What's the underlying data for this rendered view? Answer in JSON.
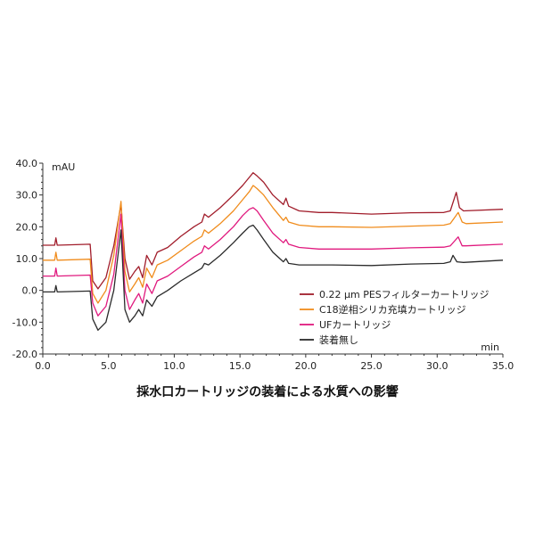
{
  "chart_data": {
    "type": "line",
    "caption": "採水口カートリッジの装着による水質への影響",
    "ylabel": "mAU",
    "xlabel": "min",
    "xlim": [
      0.0,
      35.0
    ],
    "ylim": [
      -20.0,
      40.0
    ],
    "x_ticks": [
      "0.0",
      "5.0",
      "10.0",
      "15.0",
      "20.0",
      "25.0",
      "30.0",
      "35.0"
    ],
    "y_ticks": [
      "40.0",
      "30.0",
      "20.0",
      "10.0",
      "0.0",
      "-10.0",
      "-20.0"
    ],
    "grid": false,
    "legend_position": "center-right",
    "series": [
      {
        "name": "0.22 μm PESフィルターカートリッジ",
        "color": "#a11d2b",
        "points": [
          [
            0,
            14.2
          ],
          [
            0.9,
            14.2
          ],
          [
            1.0,
            16.5
          ],
          [
            1.1,
            14.2
          ],
          [
            3.6,
            14.5
          ],
          [
            3.8,
            3
          ],
          [
            4.2,
            0.5
          ],
          [
            4.8,
            4
          ],
          [
            5.4,
            14
          ],
          [
            5.95,
            27
          ],
          [
            6.25,
            10
          ],
          [
            6.6,
            3.5
          ],
          [
            7.0,
            6
          ],
          [
            7.3,
            7.5
          ],
          [
            7.6,
            4
          ],
          [
            7.9,
            11
          ],
          [
            8.3,
            8
          ],
          [
            8.7,
            12
          ],
          [
            9.5,
            13.5
          ],
          [
            10.5,
            17
          ],
          [
            11.5,
            20
          ],
          [
            12.1,
            21.5
          ],
          [
            12.3,
            24
          ],
          [
            12.6,
            23
          ],
          [
            13.5,
            26
          ],
          [
            14.5,
            30
          ],
          [
            15.2,
            33
          ],
          [
            15.7,
            35.5
          ],
          [
            16.0,
            37
          ],
          [
            16.3,
            36
          ],
          [
            16.8,
            34
          ],
          [
            17.5,
            30
          ],
          [
            18.3,
            27
          ],
          [
            18.5,
            29
          ],
          [
            18.7,
            26.5
          ],
          [
            19.5,
            25
          ],
          [
            21.0,
            24.5
          ],
          [
            22.0,
            24.5
          ],
          [
            25.0,
            24
          ],
          [
            28.0,
            24.4
          ],
          [
            30.5,
            24.5
          ],
          [
            31.0,
            25
          ],
          [
            31.45,
            30.8
          ],
          [
            31.7,
            26
          ],
          [
            32.0,
            25
          ],
          [
            35.0,
            25.5
          ]
        ]
      },
      {
        "name": "C18逆相シリカ充填カートリッジ",
        "color": "#f08c1c",
        "points": [
          [
            0,
            9.5
          ],
          [
            0.9,
            9.5
          ],
          [
            1.0,
            12
          ],
          [
            1.1,
            9.5
          ],
          [
            3.6,
            9.8
          ],
          [
            3.8,
            -1
          ],
          [
            4.2,
            -4
          ],
          [
            4.8,
            0
          ],
          [
            5.4,
            11
          ],
          [
            5.95,
            28
          ],
          [
            6.25,
            6
          ],
          [
            6.6,
            -0.5
          ],
          [
            7.0,
            2
          ],
          [
            7.3,
            4
          ],
          [
            7.6,
            1
          ],
          [
            7.9,
            7
          ],
          [
            8.3,
            4
          ],
          [
            8.7,
            8
          ],
          [
            9.5,
            9.5
          ],
          [
            10.5,
            12.5
          ],
          [
            11.5,
            15.5
          ],
          [
            12.1,
            17
          ],
          [
            12.3,
            19
          ],
          [
            12.6,
            18
          ],
          [
            13.5,
            21
          ],
          [
            14.5,
            25
          ],
          [
            15.2,
            28.5
          ],
          [
            15.7,
            31
          ],
          [
            16.0,
            33
          ],
          [
            16.3,
            32
          ],
          [
            16.8,
            30
          ],
          [
            17.5,
            26
          ],
          [
            18.3,
            22
          ],
          [
            18.5,
            23
          ],
          [
            18.7,
            21.5
          ],
          [
            19.5,
            20.5
          ],
          [
            21.0,
            20
          ],
          [
            22.0,
            20
          ],
          [
            25.0,
            19.8
          ],
          [
            28.0,
            20.2
          ],
          [
            30.5,
            20.5
          ],
          [
            31.0,
            21
          ],
          [
            31.6,
            24.5
          ],
          [
            31.9,
            21.5
          ],
          [
            32.2,
            21
          ],
          [
            35.0,
            21.5
          ]
        ]
      },
      {
        "name": "UFカートリッジ",
        "color": "#e0197e",
        "points": [
          [
            0,
            4.5
          ],
          [
            0.9,
            4.5
          ],
          [
            1.0,
            7
          ],
          [
            1.1,
            4.5
          ],
          [
            3.6,
            4.8
          ],
          [
            3.8,
            -4
          ],
          [
            4.2,
            -8
          ],
          [
            4.8,
            -5
          ],
          [
            5.4,
            5
          ],
          [
            5.95,
            24
          ],
          [
            6.25,
            0
          ],
          [
            6.6,
            -6
          ],
          [
            7.0,
            -3
          ],
          [
            7.3,
            -1
          ],
          [
            7.6,
            -4
          ],
          [
            7.9,
            2
          ],
          [
            8.3,
            -1
          ],
          [
            8.7,
            3
          ],
          [
            9.5,
            4.5
          ],
          [
            10.5,
            7.5
          ],
          [
            11.5,
            10.5
          ],
          [
            12.1,
            12
          ],
          [
            12.3,
            14
          ],
          [
            12.6,
            13
          ],
          [
            13.5,
            16
          ],
          [
            14.5,
            20
          ],
          [
            15.2,
            23.5
          ],
          [
            15.7,
            25.5
          ],
          [
            16.0,
            26
          ],
          [
            16.3,
            25
          ],
          [
            16.8,
            22
          ],
          [
            17.5,
            18
          ],
          [
            18.3,
            15
          ],
          [
            18.5,
            16
          ],
          [
            18.7,
            14.5
          ],
          [
            19.5,
            13.5
          ],
          [
            21.0,
            13
          ],
          [
            22.0,
            13
          ],
          [
            25.0,
            13
          ],
          [
            28.0,
            13.4
          ],
          [
            30.5,
            13.6
          ],
          [
            31.0,
            14
          ],
          [
            31.6,
            16.8
          ],
          [
            31.9,
            14
          ],
          [
            32.2,
            14
          ],
          [
            35.0,
            14.5
          ]
        ]
      },
      {
        "name": "装着無し",
        "color": "#2b2b2b",
        "points": [
          [
            0,
            -0.5
          ],
          [
            0.9,
            -0.5
          ],
          [
            1.0,
            1.5
          ],
          [
            1.1,
            -0.5
          ],
          [
            3.6,
            -0.2
          ],
          [
            3.8,
            -9
          ],
          [
            4.2,
            -12.5
          ],
          [
            4.8,
            -10
          ],
          [
            5.4,
            0
          ],
          [
            5.95,
            19
          ],
          [
            6.25,
            -6
          ],
          [
            6.6,
            -10
          ],
          [
            7.0,
            -8
          ],
          [
            7.3,
            -6
          ],
          [
            7.6,
            -8
          ],
          [
            7.9,
            -3
          ],
          [
            8.3,
            -5
          ],
          [
            8.7,
            -2
          ],
          [
            9.5,
            0
          ],
          [
            10.5,
            3
          ],
          [
            11.5,
            5.5
          ],
          [
            12.1,
            7
          ],
          [
            12.3,
            8.5
          ],
          [
            12.6,
            8
          ],
          [
            13.5,
            11
          ],
          [
            14.5,
            15
          ],
          [
            15.2,
            18
          ],
          [
            15.7,
            20
          ],
          [
            16.0,
            20.5
          ],
          [
            16.3,
            19
          ],
          [
            16.8,
            16
          ],
          [
            17.5,
            12
          ],
          [
            18.3,
            9
          ],
          [
            18.5,
            10
          ],
          [
            18.7,
            8.5
          ],
          [
            19.5,
            8
          ],
          [
            21.0,
            8
          ],
          [
            22.0,
            8
          ],
          [
            25.0,
            7.8
          ],
          [
            28.0,
            8.3
          ],
          [
            30.5,
            8.5
          ],
          [
            31.0,
            9
          ],
          [
            31.2,
            11
          ],
          [
            31.5,
            9
          ],
          [
            32.0,
            8.8
          ],
          [
            35.0,
            9.5
          ]
        ]
      }
    ]
  }
}
